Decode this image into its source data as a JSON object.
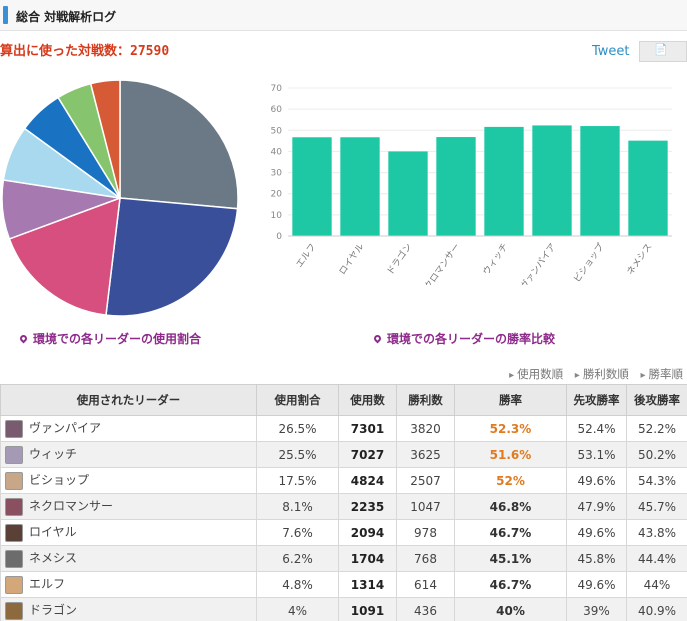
{
  "header": {
    "title": "総合 対戦解析ログ"
  },
  "summary": {
    "label": "算出に使った対戦数：",
    "value": "27590"
  },
  "social": {
    "tweet_label": "Tweet",
    "share_icon": "document-icon"
  },
  "captions": {
    "pie": "環境での各リーダーの使用割合",
    "bar": "環境での各リーダーの勝率比較"
  },
  "sort_links": [
    "使用数順",
    "勝利数順",
    "勝率順"
  ],
  "colors": {
    "bar": "#1ec8a5",
    "accent": "#e07b20",
    "pie": [
      "#6b7886",
      "#3a4f99",
      "#d64f7e",
      "#a679b0",
      "#a9d9ef",
      "#1a73c2",
      "#86c56d",
      "#d65a36"
    ]
  },
  "table": {
    "headers": [
      "使用されたリーダー",
      "使用割合",
      "使用数",
      "勝利数",
      "勝率",
      "先攻勝率",
      "後攻勝率"
    ],
    "rows": [
      {
        "leader": "ヴァンパイア",
        "share": "26.5%",
        "uses": "7301",
        "wins": "3820",
        "rate": "52.3%",
        "hot": true,
        "first": "52.4%",
        "second": "52.2%",
        "avatar": "#7a5a6e"
      },
      {
        "leader": "ウィッチ",
        "share": "25.5%",
        "uses": "7027",
        "wins": "3625",
        "rate": "51.6%",
        "hot": true,
        "first": "53.1%",
        "second": "50.2%",
        "avatar": "#a49ab5"
      },
      {
        "leader": "ビショップ",
        "share": "17.5%",
        "uses": "4824",
        "wins": "2507",
        "rate": "52%",
        "hot": true,
        "first": "49.6%",
        "second": "54.3%",
        "avatar": "#c7a788"
      },
      {
        "leader": "ネクロマンサー",
        "share": "8.1%",
        "uses": "2235",
        "wins": "1047",
        "rate": "46.8%",
        "hot": false,
        "first": "47.9%",
        "second": "45.7%",
        "avatar": "#8a5060"
      },
      {
        "leader": "ロイヤル",
        "share": "7.6%",
        "uses": "2094",
        "wins": "978",
        "rate": "46.7%",
        "hot": false,
        "first": "49.6%",
        "second": "43.8%",
        "avatar": "#5a4036"
      },
      {
        "leader": "ネメシス",
        "share": "6.2%",
        "uses": "1704",
        "wins": "768",
        "rate": "45.1%",
        "hot": false,
        "first": "45.8%",
        "second": "44.4%",
        "avatar": "#6c6c6c"
      },
      {
        "leader": "エルフ",
        "share": "4.8%",
        "uses": "1314",
        "wins": "614",
        "rate": "46.7%",
        "hot": false,
        "first": "49.6%",
        "second": "44%",
        "avatar": "#d3a77a"
      },
      {
        "leader": "ドラゴン",
        "share": "4%",
        "uses": "1091",
        "wins": "436",
        "rate": "40%",
        "hot": false,
        "first": "39%",
        "second": "40.9%",
        "avatar": "#8c6a3e"
      }
    ]
  },
  "chart_data": [
    {
      "type": "pie",
      "title": "",
      "categories": [
        "ヴァンパイア",
        "ウィッチ",
        "ビショップ",
        "ネクロマンサー",
        "ロイヤル",
        "ネメシス",
        "エルフ",
        "ドラゴン"
      ],
      "values": [
        26.5,
        25.5,
        17.5,
        8.1,
        7.6,
        6.2,
        4.8,
        4.0
      ]
    },
    {
      "type": "bar",
      "title": "",
      "categories": [
        "エルフ",
        "ロイヤル",
        "ドラゴン",
        "ネクロマンサー",
        "ウィッチ",
        "ヴァンパイア",
        "ビショップ",
        "ネメシス"
      ],
      "values": [
        46.7,
        46.7,
        40,
        46.8,
        51.6,
        52.3,
        52,
        45.1
      ],
      "yticks": [
        "0",
        "10",
        "20",
        "30",
        "40",
        "50",
        "60",
        "70"
      ],
      "ylim": [
        0,
        70
      ],
      "grid": true
    }
  ]
}
